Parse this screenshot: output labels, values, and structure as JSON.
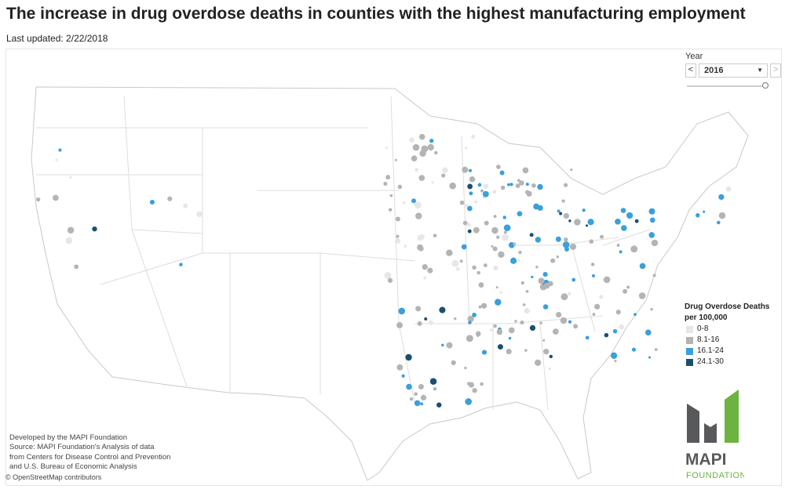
{
  "title": "The increase in drug overdose deaths in counties with the highest manufacturing employment",
  "last_updated": "Last updated: 2/22/2018",
  "year_filter": {
    "label": "Year",
    "value": "2016",
    "prev": "<",
    "next": ">",
    "slider_position": 1.0
  },
  "legend": {
    "title_line1": "Drug Overdose Deaths",
    "title_line2": "per 100,000",
    "items": [
      {
        "label": "0-8",
        "color": "#e6e7e8"
      },
      {
        "label": "8.1-16",
        "color": "#b4b4b4"
      },
      {
        "label": "16.1-24",
        "color": "#3aa0dc"
      },
      {
        "label": "24.1-30",
        "color": "#1b4f72"
      }
    ]
  },
  "credits": [
    "Developed by the MAPI Foundation",
    "Source: MAPI Foundation's Analysis of data",
    "from Centers for Disease Control and Prevention",
    "and U.S. Bureau of Economic Analysis"
  ],
  "osm": "© OpenStreetMap contributors",
  "logo": {
    "text1": "MAPI",
    "text2": "FOUNDATION",
    "gray": "#58595b",
    "green": "#6db33f"
  }
}
